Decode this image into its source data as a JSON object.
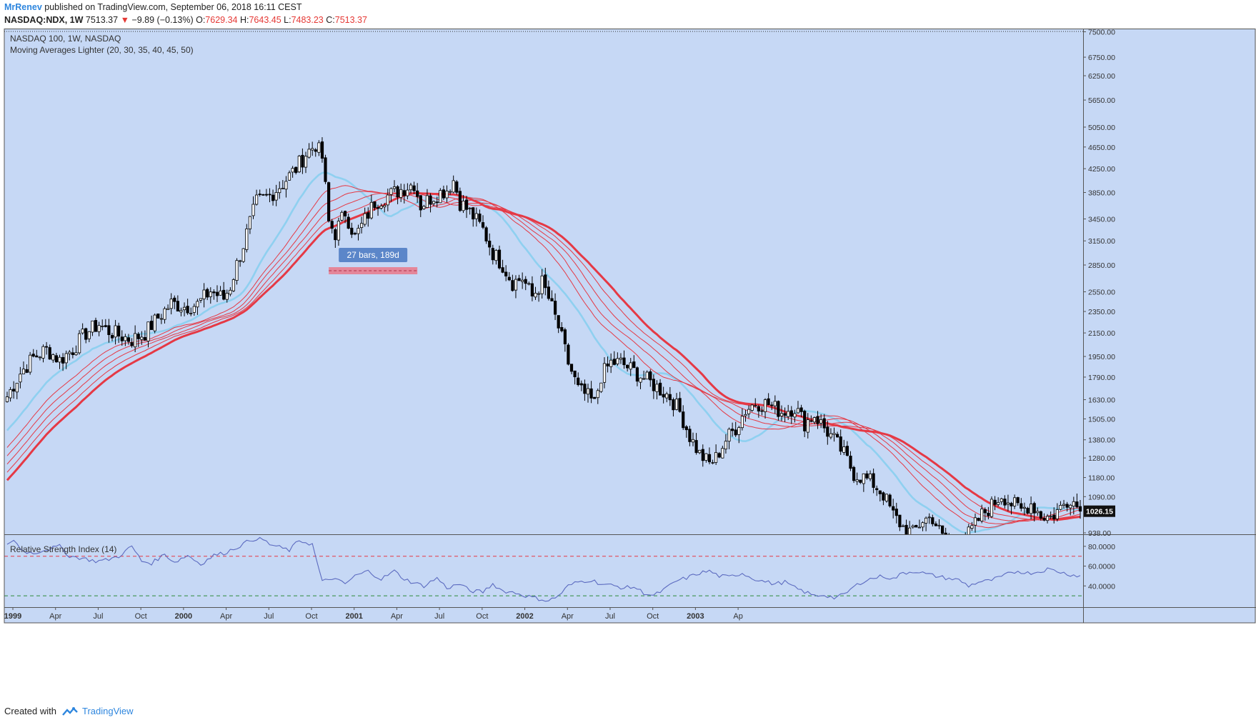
{
  "header": {
    "author": "MrRenev",
    "published_text": "published on TradingView.com, September 06, 2018 16:11 CEST",
    "symbol": "NASDAQ:NDX, 1W",
    "last": "7513.37",
    "change": "−9.89 (−0.13%)",
    "open_label": "O:",
    "open": "7629.34",
    "high_label": "H:",
    "high": "7643.45",
    "low_label": "L:",
    "low": "7483.23",
    "close_label": "C:",
    "close": "7513.37"
  },
  "legend": {
    "title": "NASDAQ 100, 1W, NASDAQ",
    "indicator": "Moving Averages Lighter (20, 30, 35, 40, 45, 50)"
  },
  "measure_label": "27 bars, 189d",
  "rsi_title": "Relative Strength Index (14)",
  "footer": {
    "created_with": "Created with",
    "brand": "TradingView"
  },
  "colors": {
    "background": "#c6d8f5",
    "up_candle": "#ffffff",
    "down_candle": "#000000",
    "ma_fast": "#8fd0f0",
    "ma_slow": "#e53945",
    "rsi_line": "#5c6bc0",
    "rsi_upper": "#e53945",
    "rsi_lower": "#2e8b3a",
    "price_tag": "#111111",
    "measure_box": "#e9798a"
  },
  "chart_data": {
    "type": "candlestick",
    "scale": "log",
    "current_price_label": "1026.15",
    "price_axis_ticks": [
      7500,
      6750,
      6250,
      5650,
      5050,
      4650,
      4250,
      3850,
      3450,
      3150,
      2850,
      2550,
      2350,
      2150,
      1950,
      1790,
      1630,
      1505,
      1380,
      1280,
      1180,
      1090,
      938
    ],
    "price_axis_labels": [
      "7500.00",
      "6750.00",
      "6250.00",
      "5650.00",
      "5050.00",
      "4650.00",
      "4250.00",
      "3850.00",
      "3450.00",
      "3150.00",
      "2850.00",
      "2550.00",
      "2350.00",
      "2150.00",
      "1950.00",
      "1790.00",
      "1630.00",
      "1505.00",
      "1380.00",
      "1280.00",
      "1180.00",
      "1090.00",
      "938.00"
    ],
    "time_axis_labels": [
      "1999",
      "Apr",
      "Jul",
      "Oct",
      "2000",
      "Apr",
      "Jul",
      "Oct",
      "2001",
      "Apr",
      "Jul",
      "Oct",
      "2002",
      "Apr",
      "Jul",
      "Oct",
      "2003",
      "Ap"
    ],
    "time_axis_bold": [
      true,
      false,
      false,
      false,
      true,
      false,
      false,
      false,
      true,
      false,
      false,
      false,
      true,
      false,
      false,
      false,
      true,
      false
    ],
    "weeks_per_label": 13,
    "close_path": [
      [
        0,
        1650
      ],
      [
        4,
        1820
      ],
      [
        8,
        1940
      ],
      [
        12,
        2010
      ],
      [
        16,
        1920
      ],
      [
        20,
        2010
      ],
      [
        24,
        2150
      ],
      [
        28,
        2230
      ],
      [
        30,
        2180
      ],
      [
        34,
        2130
      ],
      [
        38,
        2090
      ],
      [
        42,
        2150
      ],
      [
        46,
        2290
      ],
      [
        50,
        2430
      ],
      [
        54,
        2400
      ],
      [
        58,
        2420
      ],
      [
        62,
        2560
      ],
      [
        66,
        2480
      ],
      [
        68,
        2610
      ],
      [
        72,
        3100
      ],
      [
        76,
        3700
      ],
      [
        80,
        3800
      ],
      [
        84,
        4000
      ],
      [
        88,
        4250
      ],
      [
        91,
        4520
      ],
      [
        94,
        4700
      ],
      [
        96,
        4450
      ],
      [
        98,
        3400
      ],
      [
        100,
        3250
      ],
      [
        103,
        3550
      ],
      [
        106,
        3200
      ],
      [
        108,
        3350
      ],
      [
        112,
        3700
      ],
      [
        116,
        3800
      ],
      [
        120,
        3900
      ],
      [
        124,
        4000
      ],
      [
        126,
        3650
      ],
      [
        130,
        3800
      ],
      [
        134,
        3900
      ],
      [
        136,
        4050
      ],
      [
        138,
        3700
      ],
      [
        141,
        3550
      ],
      [
        145,
        3300
      ],
      [
        148,
        3000
      ],
      [
        151,
        2850
      ],
      [
        154,
        2650
      ],
      [
        157,
        2700
      ],
      [
        160,
        2500
      ],
      [
        163,
        2650
      ],
      [
        165,
        2480
      ],
      [
        168,
        2200
      ],
      [
        171,
        1900
      ],
      [
        174,
        1700
      ],
      [
        177,
        1650
      ],
      [
        179,
        1600
      ],
      [
        181,
        1800
      ],
      [
        184,
        1900
      ],
      [
        187,
        1900
      ],
      [
        190,
        1850
      ],
      [
        193,
        1800
      ],
      [
        196,
        1750
      ],
      [
        199,
        1700
      ],
      [
        202,
        1650
      ],
      [
        205,
        1550
      ],
      [
        208,
        1400
      ],
      [
        211,
        1300
      ],
      [
        214,
        1250
      ],
      [
        216,
        1280
      ],
      [
        219,
        1380
      ],
      [
        222,
        1450
      ],
      [
        225,
        1560
      ],
      [
        228,
        1610
      ],
      [
        232,
        1600
      ],
      [
        236,
        1550
      ],
      [
        240,
        1580
      ],
      [
        243,
        1480
      ],
      [
        246,
        1530
      ],
      [
        249,
        1450
      ],
      [
        252,
        1380
      ],
      [
        255,
        1300
      ],
      [
        258,
        1200
      ],
      [
        261,
        1180
      ],
      [
        264,
        1150
      ],
      [
        267,
        1100
      ],
      [
        270,
        1010
      ],
      [
        273,
        960
      ],
      [
        276,
        935
      ],
      [
        279,
        990
      ],
      [
        282,
        1000
      ],
      [
        285,
        920
      ],
      [
        288,
        880
      ],
      [
        291,
        900
      ],
      [
        294,
        950
      ],
      [
        297,
        1010
      ],
      [
        300,
        1050
      ],
      [
        303,
        1100
      ],
      [
        306,
        1060
      ],
      [
        309,
        1030
      ],
      [
        312,
        1060
      ],
      [
        315,
        1010
      ],
      [
        318,
        1000
      ],
      [
        321,
        1040
      ],
      [
        324,
        1090
      ],
      [
        327,
        1026
      ]
    ],
    "rsi_path": [
      [
        0,
        83
      ],
      [
        2,
        86
      ],
      [
        5,
        75
      ],
      [
        8,
        73
      ],
      [
        12,
        77
      ],
      [
        16,
        80
      ],
      [
        19,
        70
      ],
      [
        23,
        68
      ],
      [
        27,
        65
      ],
      [
        30,
        66
      ],
      [
        34,
        70
      ],
      [
        38,
        80
      ],
      [
        41,
        65
      ],
      [
        44,
        63
      ],
      [
        48,
        72
      ],
      [
        51,
        64
      ],
      [
        55,
        71
      ],
      [
        59,
        62
      ],
      [
        63,
        71
      ],
      [
        66,
        73
      ],
      [
        70,
        79
      ],
      [
        74,
        86
      ],
      [
        77,
        89
      ],
      [
        80,
        82
      ],
      [
        83,
        79
      ],
      [
        86,
        76
      ],
      [
        89,
        86
      ],
      [
        93,
        82
      ],
      [
        96,
        44
      ],
      [
        99,
        48
      ],
      [
        103,
        42
      ],
      [
        106,
        50
      ],
      [
        110,
        55
      ],
      [
        114,
        47
      ],
      [
        118,
        55
      ],
      [
        121,
        47
      ],
      [
        124,
        43
      ],
      [
        127,
        40
      ],
      [
        131,
        48
      ],
      [
        134,
        38
      ],
      [
        138,
        42
      ],
      [
        141,
        35
      ],
      [
        145,
        34
      ],
      [
        148,
        42
      ],
      [
        151,
        35
      ],
      [
        155,
        33
      ],
      [
        158,
        30
      ],
      [
        162,
        27
      ],
      [
        165,
        25
      ],
      [
        168,
        30
      ],
      [
        171,
        40
      ],
      [
        174,
        44
      ],
      [
        178,
        46
      ],
      [
        181,
        42
      ],
      [
        185,
        40
      ],
      [
        188,
        38
      ],
      [
        191,
        39
      ],
      [
        194,
        33
      ],
      [
        197,
        30
      ],
      [
        201,
        38
      ],
      [
        204,
        45
      ],
      [
        207,
        48
      ],
      [
        211,
        53
      ],
      [
        214,
        55
      ],
      [
        217,
        50
      ],
      [
        220,
        49
      ],
      [
        224,
        53
      ],
      [
        227,
        48
      ],
      [
        230,
        45
      ],
      [
        234,
        42
      ],
      [
        237,
        44
      ],
      [
        240,
        38
      ],
      [
        243,
        34
      ],
      [
        246,
        30
      ],
      [
        249,
        31
      ],
      [
        252,
        28
      ],
      [
        255,
        31
      ],
      [
        258,
        39
      ],
      [
        261,
        45
      ],
      [
        264,
        48
      ],
      [
        267,
        50
      ],
      [
        270,
        47
      ],
      [
        273,
        53
      ],
      [
        277,
        55
      ],
      [
        280,
        52
      ],
      [
        283,
        50
      ],
      [
        286,
        48
      ],
      [
        290,
        46
      ],
      [
        293,
        40
      ],
      [
        296,
        44
      ],
      [
        299,
        45
      ],
      [
        302,
        48
      ],
      [
        305,
        52
      ],
      [
        308,
        55
      ],
      [
        311,
        53
      ],
      [
        314,
        54
      ],
      [
        317,
        57
      ],
      [
        320,
        55
      ],
      [
        323,
        52
      ],
      [
        327,
        50
      ]
    ],
    "rsi_levels": {
      "upper": 70,
      "lower": 30
    },
    "rsi_axis_labels": [
      "80.0000",
      "60.0000",
      "40.0000"
    ],
    "rsi_axis_values": [
      80,
      60,
      40
    ],
    "measure_range_weeks": [
      98,
      125
    ]
  }
}
